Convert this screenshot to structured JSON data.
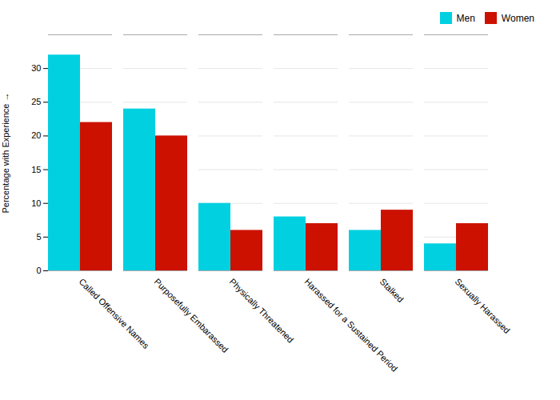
{
  "chart_data": {
    "type": "bar",
    "categories": [
      "Called Offensive Names",
      "Purposefully Embarassed",
      "Physically Threatened",
      "Harassed for a Sustained Period",
      "Stalked",
      "Sexually Harassed"
    ],
    "series": [
      {
        "name": "Men",
        "color": "#00D0E0",
        "values": [
          32,
          24,
          10,
          8,
          6,
          4
        ]
      },
      {
        "name": "Women",
        "color": "#CC1100",
        "values": [
          22,
          20,
          6,
          7,
          9,
          7
        ]
      }
    ],
    "ylabel": "Percentage with Experience",
    "ylim": [
      0,
      35
    ],
    "yticks": [
      0,
      5,
      10,
      15,
      20,
      25,
      30
    ],
    "grid": true,
    "legend": "upper right"
  }
}
